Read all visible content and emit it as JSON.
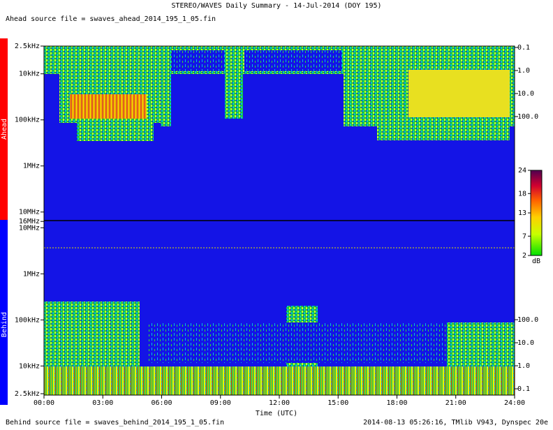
{
  "title": "STEREO/WAVES Daily Summary - 14-Jul-2014 (DOY 195)",
  "ahead_source": "Ahead source file = swaves_ahead_2014_195_1_05.fin",
  "behind_source": "Behind source file = swaves_behind_2014_195_1_05.fin",
  "footer": "2014-08-13 05:26:16, TMlib V943, Dynspec 20e",
  "ahead_label": "Ahead",
  "behind_label": "Behind",
  "xlabel": "Time (UTC)",
  "xticks": [
    "00:00",
    "03:00",
    "06:00",
    "09:00",
    "12:00",
    "15:00",
    "18:00",
    "21:00",
    "24:00"
  ],
  "ahead_yticks": [
    {
      "value": 2500,
      "label": "2.5kHz"
    },
    {
      "value": 10000,
      "label": "10kHz"
    },
    {
      "value": 100000,
      "label": "100kHz"
    },
    {
      "value": 1000000,
      "label": "1MHz"
    },
    {
      "value": 10000000,
      "label": "10MHz"
    },
    {
      "value": 16000000,
      "label": "16MHz"
    }
  ],
  "behind_yticks": [
    {
      "value": 10000000,
      "label": "10MHz"
    },
    {
      "value": 1000000,
      "label": "1MHz"
    },
    {
      "value": 100000,
      "label": "100kHz"
    },
    {
      "value": 10000,
      "label": "10kHz"
    },
    {
      "value": 2500,
      "label": "2.5kHz"
    }
  ],
  "ahead_y2ticks": [
    0.1,
    {
      "value": 1,
      "label": "1.0"
    },
    {
      "value": 10,
      "label": "10.0"
    },
    {
      "value": 100,
      "label": "100.0"
    }
  ],
  "behind_y2ticks": [
    {
      "value": 100,
      "label": "100.0"
    },
    {
      "value": 10,
      "label": "10.0"
    },
    {
      "value": 1,
      "label": "1.0"
    },
    0.1
  ],
  "colorbar": {
    "label": "dB",
    "clim": [
      2,
      24
    ],
    "ticks": [
      24,
      18,
      13,
      7,
      2
    ]
  }
}
